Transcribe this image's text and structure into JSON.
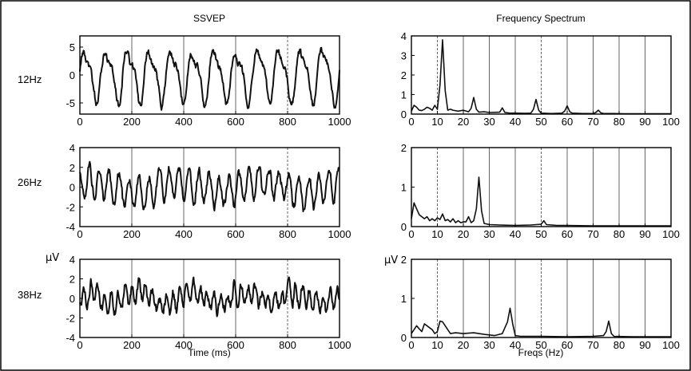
{
  "figure": {
    "border_color": "#000000",
    "ink_color": "#111111",
    "titles": {
      "left": "SSVEP",
      "right": "Frequency Spectrum"
    },
    "row_labels": [
      "12Hz",
      "26Hz",
      "38Hz"
    ],
    "unit_labels": {
      "left": "μV",
      "right": "μV"
    },
    "xlabels": {
      "left": "Time (ms)",
      "right": "Freqs (Hz)"
    }
  },
  "chart_data": [
    {
      "type": "line",
      "panel": "ssvep-12hz",
      "row_label": "12Hz",
      "title": "SSVEP",
      "xlim": [
        0,
        1000
      ],
      "ylim": [
        -7,
        7
      ],
      "xticks": [
        0,
        200,
        400,
        600,
        800,
        1000
      ],
      "yticks": [
        -5,
        0,
        5
      ],
      "grid_x": [
        200,
        400,
        600,
        800
      ],
      "signal": {
        "freq_hz": 12,
        "amplitude_uv": 4.2,
        "secondary_freq_hz": 24,
        "secondary_amplitude_uv": 1.4,
        "noise_uv": 0.7
      }
    },
    {
      "type": "line",
      "panel": "spectrum-12hz",
      "title": "Frequency Spectrum",
      "xlim": [
        0,
        100
      ],
      "ylim": [
        0,
        4
      ],
      "xticks": [
        0,
        10,
        20,
        30,
        40,
        50,
        60,
        70,
        80,
        90,
        100
      ],
      "yticks": [
        0,
        1,
        2,
        3,
        4
      ],
      "grid_x": [
        10,
        20,
        30,
        40,
        50,
        60,
        70,
        80,
        90
      ],
      "x": [
        0,
        1,
        2,
        3,
        4,
        5,
        6,
        7,
        8,
        9,
        10,
        11,
        12,
        13,
        14,
        15,
        16,
        18,
        20,
        22,
        23,
        24,
        25,
        26,
        28,
        30,
        34,
        35,
        36,
        38,
        40,
        44,
        46,
        47,
        48,
        49,
        50,
        54,
        58,
        59,
        60,
        61,
        62,
        66,
        70,
        71,
        72,
        73,
        74,
        78,
        82,
        86,
        90,
        94,
        100
      ],
      "y": [
        0.15,
        0.45,
        0.35,
        0.2,
        0.18,
        0.25,
        0.35,
        0.3,
        0.2,
        0.45,
        0.25,
        1.5,
        3.8,
        1.2,
        0.2,
        0.25,
        0.2,
        0.15,
        0.2,
        0.12,
        0.3,
        0.85,
        0.25,
        0.1,
        0.12,
        0.08,
        0.1,
        0.32,
        0.08,
        0.05,
        0.05,
        0.04,
        0.05,
        0.25,
        0.75,
        0.2,
        0.05,
        0.03,
        0.05,
        0.15,
        0.42,
        0.12,
        0.05,
        0.03,
        0.03,
        0.08,
        0.2,
        0.06,
        0.03,
        0.03,
        0.02,
        0.02,
        0.02,
        0.02,
        0.02
      ]
    },
    {
      "type": "line",
      "panel": "ssvep-26hz",
      "row_label": "26Hz",
      "xlim": [
        0,
        1000
      ],
      "ylim": [
        -4,
        4
      ],
      "xticks": [
        0,
        200,
        400,
        600,
        800,
        1000
      ],
      "yticks": [
        -4,
        -2,
        0,
        2,
        4
      ],
      "grid_x": [
        200,
        400,
        600,
        800
      ],
      "signal": {
        "freq_hz": 26,
        "amplitude_uv": 1.5,
        "secondary_freq_hz": 3,
        "secondary_amplitude_uv": 0.6,
        "noise_uv": 0.5
      }
    },
    {
      "type": "line",
      "panel": "spectrum-26hz",
      "xlim": [
        0,
        100
      ],
      "ylim": [
        0,
        2
      ],
      "xticks": [
        0,
        10,
        20,
        30,
        40,
        50,
        60,
        70,
        80,
        90,
        100
      ],
      "yticks": [
        0,
        1,
        2
      ],
      "grid_x": [
        10,
        20,
        30,
        40,
        50,
        60,
        70,
        80,
        90
      ],
      "x": [
        0,
        1,
        2,
        3,
        4,
        5,
        6,
        7,
        8,
        9,
        10,
        11,
        12,
        13,
        14,
        15,
        16,
        17,
        18,
        19,
        20,
        21,
        22,
        23,
        24,
        25,
        26,
        27,
        28,
        30,
        34,
        40,
        46,
        48,
        50,
        51,
        52,
        56,
        60,
        70,
        80,
        90,
        100
      ],
      "y": [
        0.2,
        0.6,
        0.45,
        0.3,
        0.25,
        0.2,
        0.25,
        0.15,
        0.2,
        0.15,
        0.22,
        0.18,
        0.32,
        0.15,
        0.18,
        0.12,
        0.2,
        0.1,
        0.15,
        0.1,
        0.12,
        0.12,
        0.25,
        0.1,
        0.15,
        0.45,
        1.25,
        0.4,
        0.08,
        0.05,
        0.04,
        0.03,
        0.04,
        0.05,
        0.06,
        0.15,
        0.05,
        0.03,
        0.03,
        0.02,
        0.02,
        0.02,
        0.02
      ]
    },
    {
      "type": "line",
      "panel": "ssvep-38hz",
      "row_label": "38Hz",
      "xlabel": "Time (ms)",
      "xlim": [
        0,
        1000
      ],
      "ylim": [
        -4,
        4
      ],
      "xticks": [
        0,
        200,
        400,
        600,
        800,
        1000
      ],
      "yticks": [
        -4,
        -2,
        0,
        2,
        4
      ],
      "grid_x": [
        200,
        400,
        600,
        800
      ],
      "signal": {
        "freq_hz": 38,
        "amplitude_uv": 0.9,
        "secondary_freq_hz": 5,
        "secondary_amplitude_uv": 0.5,
        "noise_uv": 0.6
      }
    },
    {
      "type": "line",
      "panel": "spectrum-38hz",
      "xlabel": "Freqs (Hz)",
      "xlim": [
        0,
        100
      ],
      "ylim": [
        0,
        2
      ],
      "xticks": [
        0,
        10,
        20,
        30,
        40,
        50,
        60,
        70,
        80,
        90,
        100
      ],
      "yticks": [
        0,
        1,
        2
      ],
      "grid_x": [
        10,
        20,
        30,
        40,
        50,
        60,
        70,
        80,
        90
      ],
      "x": [
        0,
        1,
        2,
        3,
        4,
        5,
        6,
        7,
        8,
        9,
        10,
        11,
        12,
        13,
        14,
        15,
        17,
        20,
        24,
        28,
        32,
        35,
        36,
        37,
        38,
        39,
        40,
        42,
        50,
        60,
        70,
        74,
        75,
        76,
        77,
        78,
        85,
        100
      ],
      "y": [
        0.1,
        0.2,
        0.3,
        0.22,
        0.15,
        0.35,
        0.3,
        0.25,
        0.2,
        0.1,
        0.15,
        0.42,
        0.4,
        0.3,
        0.2,
        0.1,
        0.12,
        0.1,
        0.12,
        0.08,
        0.05,
        0.1,
        0.25,
        0.4,
        0.75,
        0.35,
        0.05,
        0.03,
        0.03,
        0.02,
        0.03,
        0.05,
        0.15,
        0.42,
        0.1,
        0.03,
        0.02,
        0.02
      ]
    }
  ]
}
